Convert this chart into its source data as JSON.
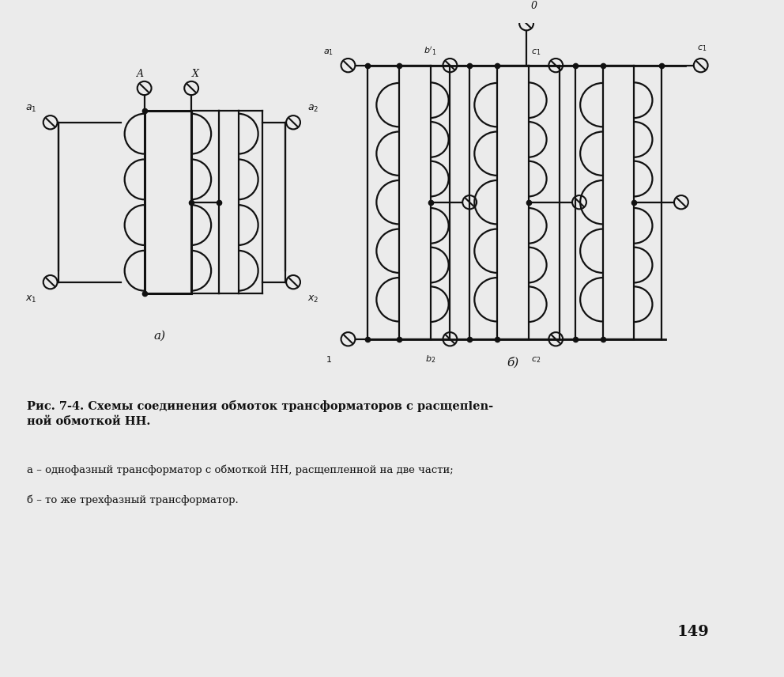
{
  "bg_color": "#ebebeb",
  "title_line1": "Рис. 7-4. Схемы соединения обмоток трансформаторов с расщепlen-",
  "title_line2": "ной обмоткой НН.",
  "caption1": "а – однофазный трансформатор с обмоткой НН, расщепленной на две части;",
  "caption2": "б – то же трехфазный трансформатор.",
  "page_num": "149",
  "lc": "#111111",
  "lw": 1.6
}
